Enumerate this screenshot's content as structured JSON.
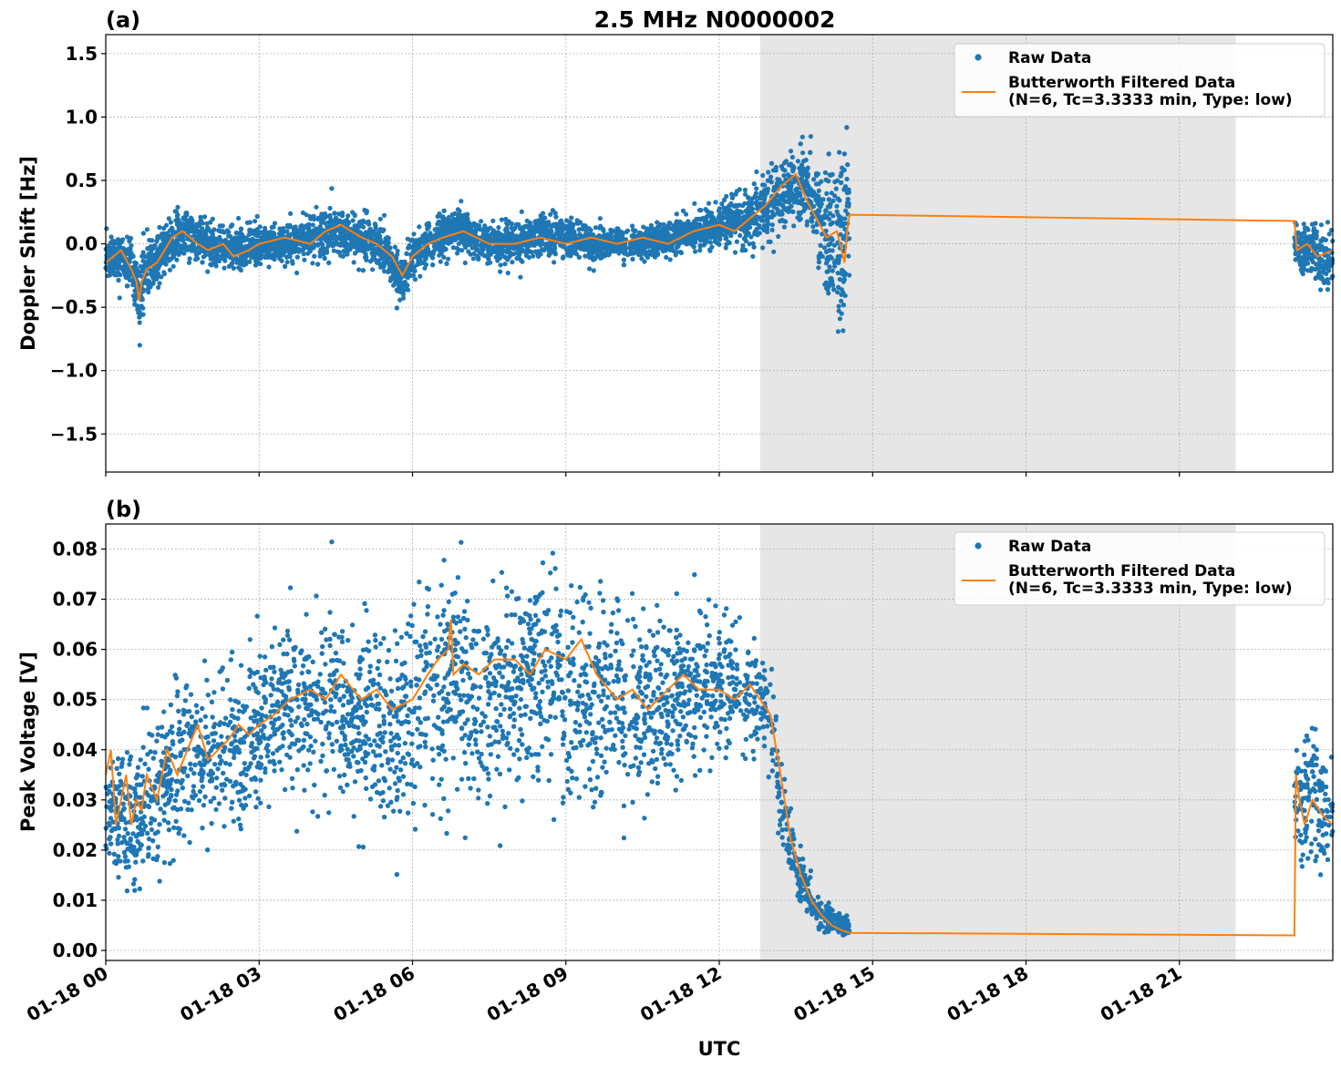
{
  "figure": {
    "title": "2.5 MHz N0000002",
    "xlabel": "UTC"
  },
  "colors": {
    "raw": "#1f77b4",
    "filtered": "#ff7f0e",
    "shade": "#e6e6e6",
    "grid": "#b0b0b0"
  },
  "chart_data": [
    {
      "type": "scatter",
      "panel_label": "(a)",
      "title": "2.5 MHz N0000002",
      "xlabel": "",
      "ylabel": "Doppler Shift [Hz]",
      "x_unit": "hours UTC on 01-18",
      "xlim": [
        0,
        24
      ],
      "ylim": [
        -1.8,
        1.65
      ],
      "x_ticks": [
        0,
        3,
        6,
        9,
        12,
        15,
        18,
        21
      ],
      "x_tick_labels": [],
      "y_ticks": [
        -1.5,
        -1.0,
        -0.5,
        0.0,
        0.5,
        1.0,
        1.5
      ],
      "y_tick_labels": [
        "−1.5",
        "−1.0",
        "−0.5",
        "0.0",
        "0.5",
        "1.0",
        "1.5"
      ],
      "grid": true,
      "legend_position": "top-right",
      "shaded_interval": [
        12.8,
        22.1
      ],
      "data_gap": [
        14.55,
        23.25
      ],
      "series": [
        {
          "name": "Raw Data",
          "style": "dots",
          "x": [
            0.0,
            0.5,
            0.6,
            0.65,
            0.7,
            0.8,
            1.0,
            1.5,
            2.0,
            2.5,
            3.0,
            3.5,
            4.0,
            4.5,
            5.0,
            5.5,
            5.8,
            6.0,
            6.5,
            7.0,
            7.5,
            8.0,
            8.5,
            9.0,
            9.5,
            10.0,
            10.5,
            11.0,
            11.5,
            12.0,
            12.5,
            13.0,
            13.5,
            13.8,
            14.0,
            14.2,
            14.4,
            14.55,
            23.25,
            23.5,
            24.0
          ],
          "mean": [
            -0.1,
            -0.15,
            -0.3,
            -0.5,
            -0.35,
            -0.2,
            -0.1,
            0.1,
            0.0,
            -0.05,
            0.0,
            0.0,
            0.05,
            0.1,
            0.05,
            -0.05,
            -0.3,
            -0.1,
            0.05,
            0.1,
            0.0,
            0.0,
            0.05,
            0.05,
            0.0,
            0.0,
            0.0,
            0.05,
            0.1,
            0.15,
            0.2,
            0.3,
            0.45,
            0.4,
            0.2,
            0.05,
            0.0,
            0.1,
            0.0,
            -0.05,
            -0.15
          ],
          "spread": [
            0.18,
            0.2,
            0.25,
            0.35,
            0.3,
            0.25,
            0.2,
            0.2,
            0.2,
            0.18,
            0.18,
            0.18,
            0.18,
            0.22,
            0.2,
            0.18,
            0.2,
            0.18,
            0.18,
            0.2,
            0.17,
            0.16,
            0.17,
            0.17,
            0.14,
            0.12,
            0.13,
            0.14,
            0.15,
            0.17,
            0.22,
            0.3,
            0.3,
            0.4,
            0.5,
            0.7,
            0.8,
            0.6,
            0.2,
            0.2,
            0.3
          ]
        },
        {
          "name": "Butterworth Filtered Data\n(N=6, Tc=3.3333 min, Type: low)",
          "style": "line",
          "x": [
            0.0,
            0.3,
            0.5,
            0.6,
            0.65,
            0.7,
            0.8,
            1.0,
            1.3,
            1.5,
            1.8,
            2.0,
            2.3,
            2.5,
            2.8,
            3.0,
            3.5,
            4.0,
            4.3,
            4.6,
            5.0,
            5.3,
            5.6,
            5.8,
            6.0,
            6.3,
            6.6,
            7.0,
            7.5,
            8.0,
            8.5,
            9.0,
            9.5,
            10.0,
            10.5,
            11.0,
            11.5,
            12.0,
            12.3,
            12.6,
            12.9,
            13.2,
            13.5,
            13.7,
            13.9,
            14.1,
            14.3,
            14.45,
            14.5,
            14.55,
            23.25,
            23.3,
            23.5,
            23.7,
            24.0
          ],
          "y": [
            -0.15,
            -0.05,
            -0.2,
            -0.3,
            -0.45,
            -0.3,
            -0.2,
            -0.15,
            0.05,
            0.1,
            0.0,
            -0.05,
            0.0,
            -0.1,
            -0.05,
            0.0,
            0.05,
            0.0,
            0.1,
            0.15,
            0.05,
            0.0,
            -0.1,
            -0.25,
            -0.1,
            0.0,
            0.05,
            0.1,
            0.0,
            0.0,
            0.05,
            0.0,
            0.05,
            0.0,
            0.05,
            0.0,
            0.1,
            0.15,
            0.1,
            0.2,
            0.3,
            0.45,
            0.55,
            0.35,
            0.2,
            0.05,
            0.1,
            -0.15,
            0.1,
            0.23,
            0.18,
            -0.05,
            0.0,
            -0.1,
            -0.05
          ]
        }
      ]
    },
    {
      "type": "scatter",
      "panel_label": "(b)",
      "title": "",
      "xlabel": "UTC",
      "ylabel": "Peak Voltage [V]",
      "x_unit": "hours UTC on 01-18",
      "xlim": [
        0,
        24
      ],
      "ylim": [
        -0.002,
        0.085
      ],
      "x_ticks": [
        0,
        3,
        6,
        9,
        12,
        15,
        18,
        21
      ],
      "x_tick_labels": [
        "01-18 00",
        "01-18 03",
        "01-18 06",
        "01-18 09",
        "01-18 12",
        "01-18 15",
        "01-18 18",
        "01-18 21"
      ],
      "y_ticks": [
        0.0,
        0.01,
        0.02,
        0.03,
        0.04,
        0.05,
        0.06,
        0.07,
        0.08
      ],
      "y_tick_labels": [
        "0.00",
        "0.01",
        "0.02",
        "0.03",
        "0.04",
        "0.05",
        "0.06",
        "0.07",
        "0.08"
      ],
      "grid": true,
      "legend_position": "top-right",
      "shaded_interval": [
        12.8,
        22.1
      ],
      "data_gap": [
        14.55,
        23.25
      ],
      "series": [
        {
          "name": "Raw Data",
          "style": "dots",
          "x": [
            0.0,
            0.5,
            1.0,
            1.5,
            2.0,
            2.5,
            3.0,
            3.5,
            4.0,
            4.5,
            5.0,
            5.5,
            6.0,
            6.5,
            7.0,
            7.5,
            8.0,
            8.5,
            9.0,
            9.5,
            10.0,
            10.5,
            11.0,
            11.5,
            12.0,
            12.5,
            12.8,
            13.0,
            13.2,
            13.4,
            13.6,
            13.8,
            14.0,
            14.2,
            14.4,
            14.55,
            23.25,
            23.5,
            24.0
          ],
          "mean": [
            0.028,
            0.025,
            0.032,
            0.038,
            0.04,
            0.04,
            0.045,
            0.05,
            0.048,
            0.05,
            0.046,
            0.046,
            0.048,
            0.052,
            0.052,
            0.05,
            0.05,
            0.053,
            0.05,
            0.05,
            0.05,
            0.048,
            0.05,
            0.052,
            0.053,
            0.052,
            0.05,
            0.045,
            0.03,
            0.02,
            0.014,
            0.01,
            0.007,
            0.006,
            0.005,
            0.004,
            0.03,
            0.03,
            0.028
          ],
          "spread": [
            0.014,
            0.014,
            0.016,
            0.018,
            0.018,
            0.018,
            0.018,
            0.018,
            0.018,
            0.02,
            0.02,
            0.02,
            0.022,
            0.024,
            0.024,
            0.022,
            0.022,
            0.022,
            0.022,
            0.024,
            0.02,
            0.02,
            0.018,
            0.016,
            0.014,
            0.012,
            0.012,
            0.012,
            0.01,
            0.008,
            0.006,
            0.005,
            0.004,
            0.003,
            0.002,
            0.002,
            0.012,
            0.015,
            0.012
          ]
        },
        {
          "name": "Butterworth Filtered Data\n(N=6, Tc=3.3333 min, Type: low)",
          "style": "line",
          "x": [
            0.0,
            0.1,
            0.2,
            0.3,
            0.4,
            0.5,
            0.6,
            0.7,
            0.8,
            1.0,
            1.2,
            1.4,
            1.6,
            1.8,
            2.0,
            2.2,
            2.4,
            2.6,
            2.8,
            3.0,
            3.3,
            3.6,
            4.0,
            4.3,
            4.6,
            5.0,
            5.3,
            5.6,
            6.0,
            6.3,
            6.5,
            6.7,
            6.75,
            6.8,
            7.0,
            7.3,
            7.6,
            8.0,
            8.3,
            8.6,
            9.0,
            9.3,
            9.6,
            10.0,
            10.3,
            10.6,
            11.0,
            11.3,
            11.6,
            12.0,
            12.3,
            12.6,
            12.8,
            13.0,
            13.2,
            13.4,
            13.6,
            13.8,
            14.0,
            14.2,
            14.4,
            14.55,
            23.25,
            23.28,
            23.35,
            23.45,
            23.6,
            23.8,
            24.0
          ],
          "y": [
            0.035,
            0.04,
            0.025,
            0.03,
            0.035,
            0.025,
            0.03,
            0.028,
            0.035,
            0.03,
            0.04,
            0.035,
            0.04,
            0.045,
            0.038,
            0.04,
            0.042,
            0.045,
            0.043,
            0.045,
            0.047,
            0.05,
            0.052,
            0.05,
            0.055,
            0.05,
            0.052,
            0.048,
            0.05,
            0.055,
            0.058,
            0.06,
            0.066,
            0.055,
            0.057,
            0.055,
            0.058,
            0.058,
            0.055,
            0.06,
            0.058,
            0.062,
            0.055,
            0.05,
            0.052,
            0.048,
            0.052,
            0.055,
            0.052,
            0.052,
            0.05,
            0.053,
            0.05,
            0.047,
            0.035,
            0.022,
            0.015,
            0.01,
            0.007,
            0.005,
            0.004,
            0.0035,
            0.003,
            0.035,
            0.03,
            0.025,
            0.03,
            0.027,
            0.025
          ]
        }
      ]
    }
  ]
}
